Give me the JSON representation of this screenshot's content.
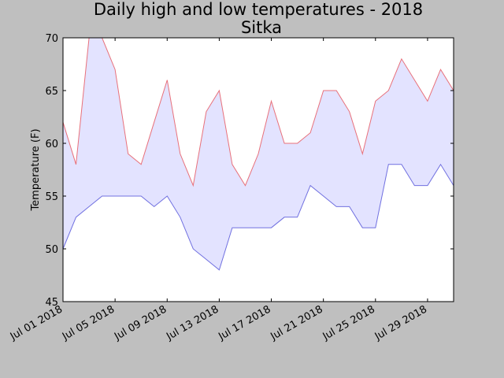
{
  "chart_data": {
    "type": "area",
    "title": "Daily high and low temperatures - 2018",
    "subtitle": "Sitka",
    "xlabel": "",
    "ylabel": "Temperature (F)",
    "ylim": [
      45,
      70
    ],
    "yticks": [
      45,
      50,
      55,
      60,
      65,
      70
    ],
    "xlim": [
      "2018-07-01",
      "2018-07-31"
    ],
    "xticks": [
      {
        "date": "2018-07-01",
        "label": "Jul 01 2018"
      },
      {
        "date": "2018-07-05",
        "label": "Jul 05 2018"
      },
      {
        "date": "2018-07-09",
        "label": "Jul 09 2018"
      },
      {
        "date": "2018-07-13",
        "label": "Jul 13 2018"
      },
      {
        "date": "2018-07-17",
        "label": "Jul 17 2018"
      },
      {
        "date": "2018-07-21",
        "label": "Jul 21 2018"
      },
      {
        "date": "2018-07-25",
        "label": "Jul 25 2018"
      },
      {
        "date": "2018-07-29",
        "label": "Jul 29 2018"
      }
    ],
    "grid": false,
    "fill_between": true,
    "fill_color": "#e3e3ff",
    "x": [
      "2018-07-01",
      "2018-07-02",
      "2018-07-03",
      "2018-07-04",
      "2018-07-05",
      "2018-07-06",
      "2018-07-07",
      "2018-07-08",
      "2018-07-09",
      "2018-07-10",
      "2018-07-11",
      "2018-07-12",
      "2018-07-13",
      "2018-07-14",
      "2018-07-15",
      "2018-07-16",
      "2018-07-17",
      "2018-07-18",
      "2018-07-19",
      "2018-07-20",
      "2018-07-21",
      "2018-07-22",
      "2018-07-23",
      "2018-07-24",
      "2018-07-25",
      "2018-07-26",
      "2018-07-27",
      "2018-07-28",
      "2018-07-29",
      "2018-07-30",
      "2018-07-31"
    ],
    "series": [
      {
        "color": "#e8707a",
        "values": [
          62,
          58,
          70,
          70,
          67,
          59,
          58,
          62,
          66,
          59,
          56,
          63,
          65,
          58,
          56,
          59,
          64,
          60,
          60,
          61,
          65,
          65,
          63,
          59,
          64,
          65,
          68,
          66,
          64,
          67,
          65
        ]
      },
      {
        "color": "#7070e0",
        "values": [
          50,
          53,
          54,
          55,
          55,
          55,
          55,
          54,
          55,
          53,
          50,
          49,
          48,
          52,
          52,
          52,
          52,
          53,
          53,
          56,
          55,
          54,
          54,
          52,
          52,
          58,
          58,
          56,
          56,
          58,
          56
        ]
      }
    ]
  }
}
